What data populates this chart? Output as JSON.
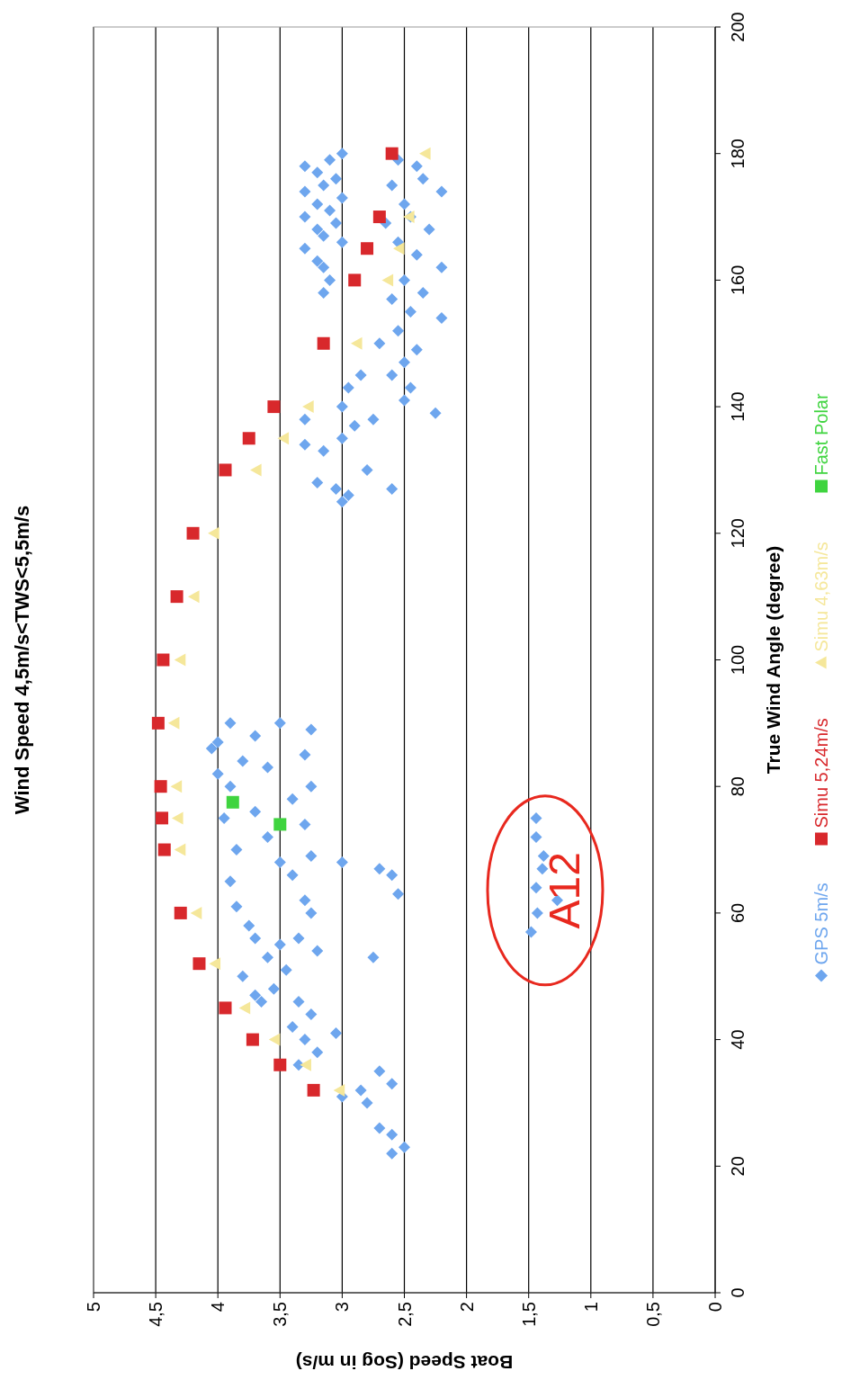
{
  "chart_data": {
    "type": "scatter",
    "title": "Wind Speed 4,5m/s<TWS<5,5m/s",
    "xlabel": "Boat Speed (Sog in m/s)",
    "ylabel": "True Wind Angle (degree)",
    "xlim": [
      5,
      0
    ],
    "xticks": [
      0,
      {
        "value": 0.5,
        "label": "0,5"
      },
      1,
      {
        "value": 1.5,
        "label": "1,5"
      },
      2,
      {
        "value": 2.5,
        "label": "2,5"
      },
      3,
      {
        "value": 3.5,
        "label": "3,5"
      },
      4,
      {
        "value": 4.5,
        "label": "4,5"
      },
      5
    ],
    "ylim": [
      0,
      200
    ],
    "yticks": [
      0,
      20,
      40,
      60,
      80,
      100,
      120,
      140,
      160,
      180,
      200
    ],
    "grid": "x",
    "legend": "right",
    "annotations": [
      {
        "text": "A12",
        "x": 1.44,
        "y": 64
      }
    ],
    "series": [
      {
        "name": "GPS 5m/s",
        "color": "#6ea6ee",
        "marker": "diamond",
        "values": [
          180,
          179,
          178,
          177,
          176,
          175,
          174,
          173,
          172,
          171,
          170,
          169,
          168,
          167,
          166,
          165,
          163,
          162,
          160,
          158,
          179,
          178,
          176,
          175,
          174,
          172,
          170,
          169,
          168,
          166,
          164,
          162,
          160,
          158,
          157,
          155,
          154,
          152,
          150,
          149,
          147,
          145,
          143,
          141,
          139,
          145,
          143,
          140,
          138,
          137,
          135,
          133,
          130,
          128,
          127,
          126,
          127,
          125,
          134,
          138,
          90,
          90,
          89,
          88,
          87,
          86,
          85,
          84,
          83,
          82,
          80,
          80,
          78,
          76,
          75,
          74,
          72,
          70,
          69,
          68,
          66,
          65,
          62,
          61,
          60,
          58,
          56,
          68,
          67,
          66,
          63,
          53,
          54,
          56,
          55,
          53,
          51,
          50,
          48,
          47,
          46,
          46,
          44,
          42,
          41,
          40,
          38,
          36,
          35,
          33,
          32,
          31,
          30,
          26,
          25,
          23,
          22,
          57,
          60,
          64,
          67,
          69,
          72,
          75,
          62
        ],
        "x": [
          3.0,
          3.1,
          3.3,
          3.2,
          3.05,
          3.15,
          3.3,
          3.0,
          3.2,
          3.1,
          3.3,
          3.05,
          3.2,
          3.15,
          3.0,
          3.3,
          3.2,
          3.15,
          3.1,
          3.15,
          2.55,
          2.4,
          2.35,
          2.6,
          2.2,
          2.5,
          2.45,
          2.65,
          2.3,
          2.55,
          2.4,
          2.2,
          2.5,
          2.35,
          2.6,
          2.45,
          2.2,
          2.55,
          2.7,
          2.4,
          2.5,
          2.6,
          2.45,
          2.5,
          2.25,
          2.85,
          2.95,
          3.0,
          2.75,
          2.9,
          3.0,
          3.15,
          2.8,
          3.2,
          3.05,
          2.95,
          2.6,
          3.0,
          3.3,
          3.3,
          3.9,
          3.5,
          3.25,
          3.7,
          4.0,
          4.05,
          3.3,
          3.8,
          3.6,
          4.0,
          3.25,
          3.9,
          3.4,
          3.7,
          3.95,
          3.3,
          3.6,
          3.85,
          3.25,
          3.5,
          3.4,
          3.9,
          3.3,
          3.85,
          3.25,
          3.75,
          3.7,
          3.0,
          2.7,
          2.6,
          2.55,
          2.75,
          3.2,
          3.35,
          3.5,
          3.6,
          3.45,
          3.8,
          3.55,
          3.7,
          3.65,
          3.35,
          3.25,
          3.4,
          3.05,
          3.3,
          3.2,
          3.35,
          2.7,
          2.6,
          2.85,
          3.0,
          2.8,
          2.7,
          2.6,
          2.5,
          2.6,
          1.48,
          1.43,
          1.44,
          1.39,
          1.38,
          1.44,
          1.44,
          1.27
        ]
      },
      {
        "name": "Simu 5,24m/s",
        "color": "#d8282c",
        "marker": "square",
        "values": [
          180,
          170,
          165,
          160,
          150,
          140,
          135,
          130,
          120,
          110,
          100,
          90,
          80,
          75,
          70,
          60,
          52,
          45,
          40,
          36,
          32
        ],
        "x": [
          2.6,
          2.7,
          2.8,
          2.9,
          3.15,
          3.55,
          3.75,
          3.94,
          4.2,
          4.33,
          4.44,
          4.48,
          4.46,
          4.45,
          4.43,
          4.3,
          4.15,
          3.94,
          3.72,
          3.5,
          3.23
        ]
      },
      {
        "name": "Simu 4,63m/s",
        "color": "#f5e79a",
        "marker": "triangle",
        "values": [
          180,
          170,
          165,
          160,
          150,
          140,
          135,
          130,
          120,
          110,
          100,
          90,
          80,
          75,
          70,
          60,
          52,
          45,
          40,
          36,
          32
        ],
        "x": [
          2.33,
          2.46,
          2.54,
          2.63,
          2.88,
          3.27,
          3.47,
          3.69,
          4.03,
          4.19,
          4.3,
          4.35,
          4.33,
          4.32,
          4.3,
          4.17,
          4.02,
          3.78,
          3.54,
          3.29,
          3.02
        ]
      },
      {
        "name": "Fast Polar",
        "color": "#3fd43f",
        "marker": "square",
        "values": [
          77.5,
          74
        ],
        "x": [
          3.88,
          3.5
        ]
      }
    ]
  }
}
